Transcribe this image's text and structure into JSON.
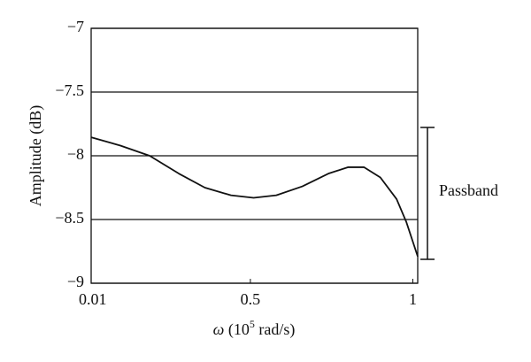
{
  "chart_data": {
    "type": "line",
    "x_label": [
      "ω",
      "(10",
      "5",
      "rad/s)"
    ],
    "y_label": "Amplitude (dB)",
    "annotation": "Passband",
    "x": [
      0.01,
      0.1,
      0.19,
      0.28,
      0.36,
      0.44,
      0.51,
      0.58,
      0.66,
      0.74,
      0.8,
      0.85,
      0.9,
      0.95,
      0.98,
      1.015
    ],
    "series": [
      {
        "color": "#111111",
        "values": [
          -7.855,
          -7.92,
          -8.0,
          -8.14,
          -8.25,
          -8.31,
          -8.33,
          -8.31,
          -8.24,
          -8.14,
          -8.09,
          -8.09,
          -8.17,
          -8.34,
          -8.52,
          -8.79
        ]
      }
    ],
    "xlim": [
      0.01,
      1.015
    ],
    "xticks": [
      0.01,
      0.5,
      1
    ],
    "ylim": [
      -9,
      -7
    ],
    "yticks": [
      {
        "value": -9,
        "label": "−9"
      },
      {
        "value": -8.5,
        "label": "−8.5"
      },
      {
        "value": -8,
        "label": "−8"
      },
      {
        "value": -7.5,
        "label": "−7.5"
      },
      {
        "value": -7,
        "label": "−7"
      }
    ],
    "grid": true
  }
}
